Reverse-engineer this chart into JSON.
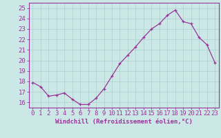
{
  "x": [
    0,
    1,
    2,
    3,
    4,
    5,
    6,
    7,
    8,
    9,
    10,
    11,
    12,
    13,
    14,
    15,
    16,
    17,
    18,
    19,
    20,
    21,
    22,
    23
  ],
  "y": [
    17.9,
    17.5,
    16.6,
    16.7,
    16.9,
    16.3,
    15.8,
    15.8,
    16.4,
    17.3,
    18.5,
    19.7,
    20.5,
    21.3,
    22.2,
    23.0,
    23.5,
    24.3,
    24.8,
    23.7,
    23.5,
    22.2,
    21.5,
    19.8
  ],
  "ylim": [
    15.5,
    25.5
  ],
  "yticks": [
    16,
    17,
    18,
    19,
    20,
    21,
    22,
    23,
    24,
    25
  ],
  "xlabel": "Windchill (Refroidissement éolien,°C)",
  "line_color": "#993399",
  "marker_color": "#993399",
  "bg_color": "#cce8e6",
  "grid_color": "#b0d4d2",
  "axes_bg": "#cce8e6",
  "label_color": "#993399",
  "tick_color": "#993399",
  "spine_color": "#993399",
  "font_size": 6.5,
  "xlabel_fontsize": 6.5
}
